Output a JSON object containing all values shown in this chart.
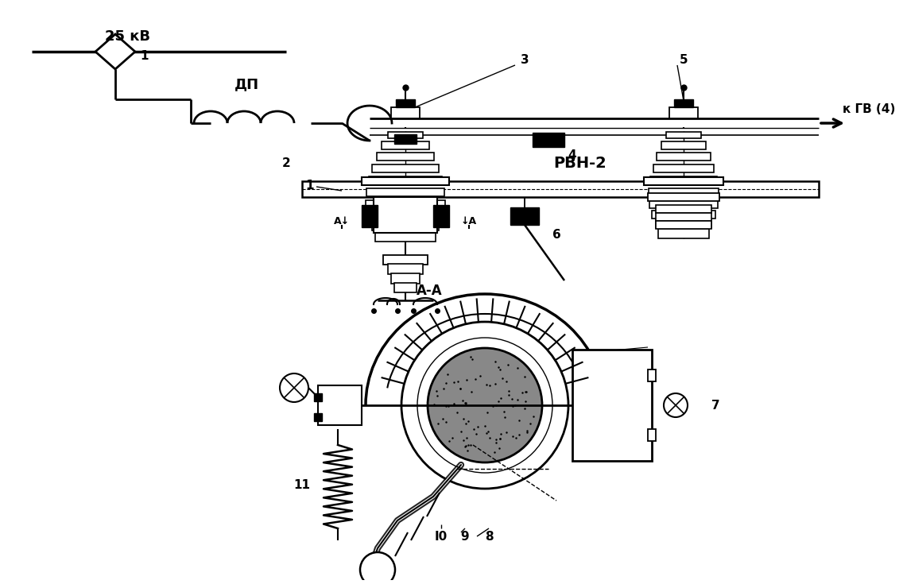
{
  "bg_color": "#ffffff",
  "line_color": "#000000",
  "label_25kv": "25 кВ",
  "label_dp": "ДП",
  "label_rvn2": "РВН-2",
  "label_kgv": "к ГВ (4)",
  "label_aa": "А-А"
}
